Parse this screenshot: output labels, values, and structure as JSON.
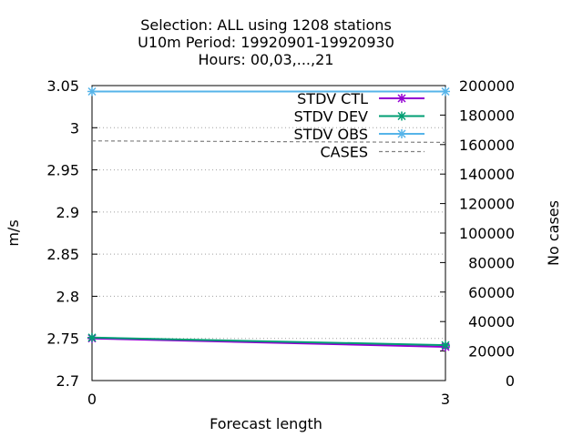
{
  "chart_data": {
    "type": "line",
    "title_lines": [
      "Selection: ALL using  1208 stations",
      "U10m   Period: 19920901-19920930",
      "Hours:  00,03,...,21"
    ],
    "xlabel": "Forecast length",
    "ylabel": "m/s",
    "y2label": "No cases",
    "xlim": [
      0,
      3
    ],
    "ylim": [
      2.7,
      3.05
    ],
    "y2lim": [
      0,
      200000
    ],
    "x_ticks": [
      "0",
      "3"
    ],
    "y_ticks": [
      "2.7",
      "2.75",
      "2.8",
      "2.85",
      "2.9",
      "2.95",
      "3",
      "3.05"
    ],
    "y2_ticks": [
      "0",
      "20000",
      "40000",
      "60000",
      "80000",
      "100000",
      "120000",
      "140000",
      "160000",
      "180000",
      "200000"
    ],
    "grid": true,
    "legend_position": "top-right",
    "x": [
      0,
      3
    ],
    "series": [
      {
        "name": "STDV CTL",
        "values": [
          2.75,
          2.74
        ],
        "color": "#9400d3",
        "axis": "y",
        "marker": "x"
      },
      {
        "name": "STDV DEV",
        "values": [
          2.751,
          2.742
        ],
        "color": "#009e73",
        "axis": "y",
        "marker": "x"
      },
      {
        "name": "STDV OBS",
        "values": [
          3.043,
          3.043
        ],
        "color": "#56b4e9",
        "axis": "y",
        "marker": "x"
      },
      {
        "name": "CASES",
        "values": [
          162500,
          161500
        ],
        "color": "#808080",
        "axis": "y2",
        "dashed": true
      }
    ]
  }
}
